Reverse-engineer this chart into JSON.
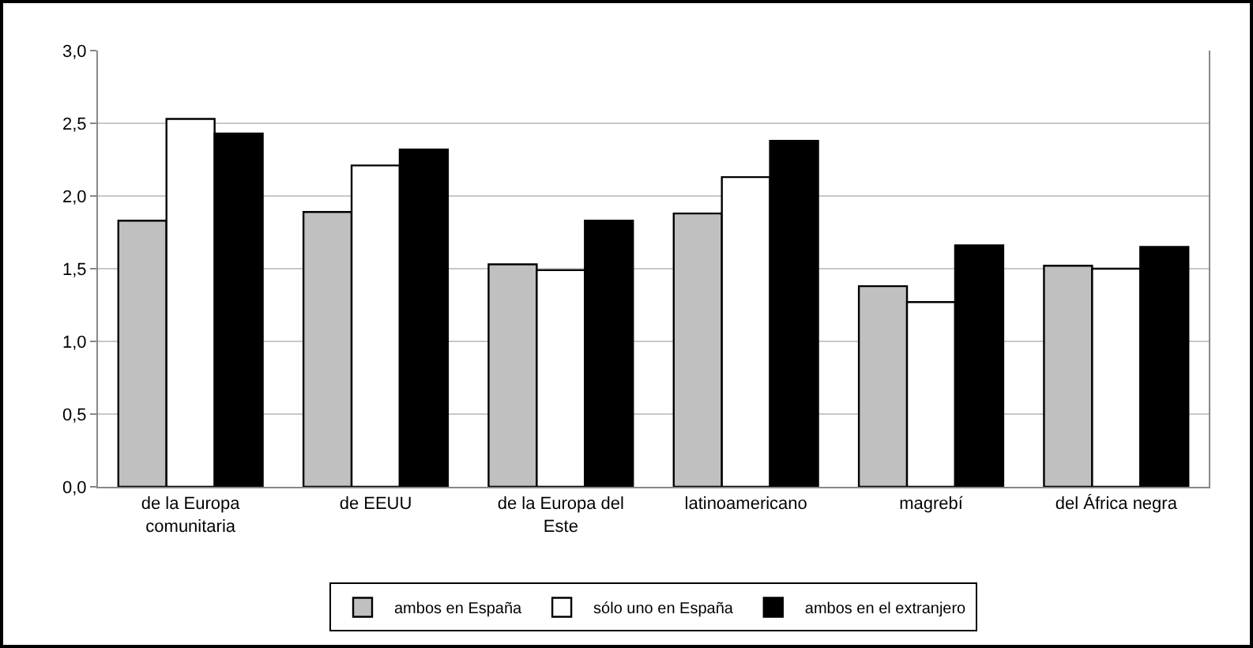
{
  "chart_data": {
    "type": "bar",
    "categories": [
      "de la Europa\ncomunitaria",
      "de EEUU",
      "de la Europa del\nEste",
      "latinoamericano",
      "magrebí",
      "del África negra"
    ],
    "series": [
      {
        "name": "ambos en España",
        "color": "#c0c0c0",
        "values": [
          1.83,
          1.89,
          1.53,
          1.88,
          1.38,
          1.52
        ]
      },
      {
        "name": "sólo uno en España",
        "color": "#ffffff",
        "values": [
          2.53,
          2.21,
          1.49,
          2.13,
          1.27,
          1.5
        ]
      },
      {
        "name": "ambos en el extranjero",
        "color": "#000000",
        "values": [
          2.43,
          2.32,
          1.83,
          2.38,
          1.66,
          1.65
        ]
      }
    ],
    "ylim": [
      0,
      3
    ],
    "yticks": [
      {
        "value": 0,
        "label": "0,0"
      },
      {
        "value": 0.5,
        "label": "0,5"
      },
      {
        "value": 1,
        "label": "1,0"
      },
      {
        "value": 1.5,
        "label": "1,5"
      },
      {
        "value": 2,
        "label": "2,0"
      },
      {
        "value": 2.5,
        "label": "2,5"
      },
      {
        "value": 3,
        "label": "3,0"
      }
    ],
    "grid": "y",
    "legend": "bottom"
  }
}
